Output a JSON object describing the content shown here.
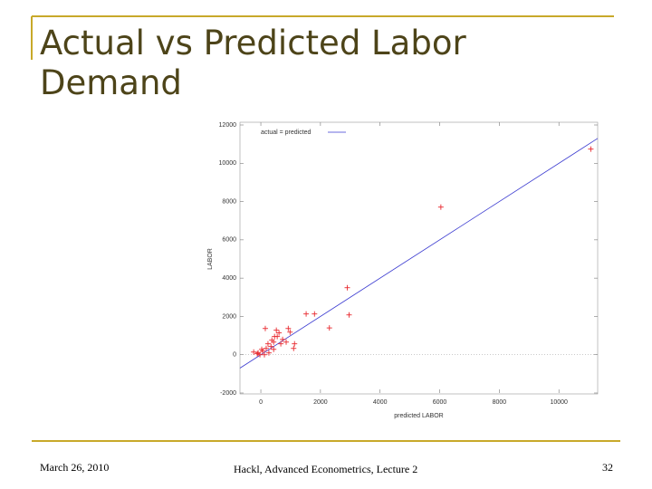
{
  "slide": {
    "title": "Actual vs Predicted Labor Demand",
    "footer": {
      "date": "March 26, 2010",
      "source": "Hackl, Advanced Econometrics, Lecture 2",
      "page": "32"
    }
  },
  "chart_data": {
    "type": "scatter",
    "xlabel": "predicted LABOR",
    "ylabel": "LABOR",
    "xlim": [
      -700,
      11300
    ],
    "ylim": [
      -2000,
      12000
    ],
    "xticks": [
      0,
      2000,
      4000,
      6000,
      8000,
      10000
    ],
    "yticks": [
      -2000,
      0,
      2000,
      4000,
      6000,
      8000,
      10000,
      12000
    ],
    "legend": "top-left",
    "points": {
      "color": "#e8282e",
      "x": [
        11070,
        6040,
        2900,
        2960,
        1520,
        1800,
        2300,
        920,
        150,
        1130,
        850,
        1100,
        460,
        520,
        730,
        370,
        240,
        340,
        430,
        60,
        -90,
        -30,
        -240,
        180,
        610,
        980,
        270,
        30,
        550,
        670,
        430,
        120,
        -120
      ],
      "y": [
        10740,
        7710,
        3500,
        2080,
        2130,
        2130,
        1400,
        1370,
        1370,
        570,
        660,
        330,
        950,
        1280,
        800,
        760,
        570,
        430,
        660,
        190,
        95,
        0,
        140,
        330,
        1140,
        1180,
        95,
        280,
        950,
        570,
        280,
        0,
        50
      ]
    },
    "series": [
      {
        "name": "actual = predicted",
        "color": "#3a3ad0",
        "x": [
          -700,
          11300
        ],
        "values": [
          -700,
          11300
        ]
      }
    ]
  }
}
